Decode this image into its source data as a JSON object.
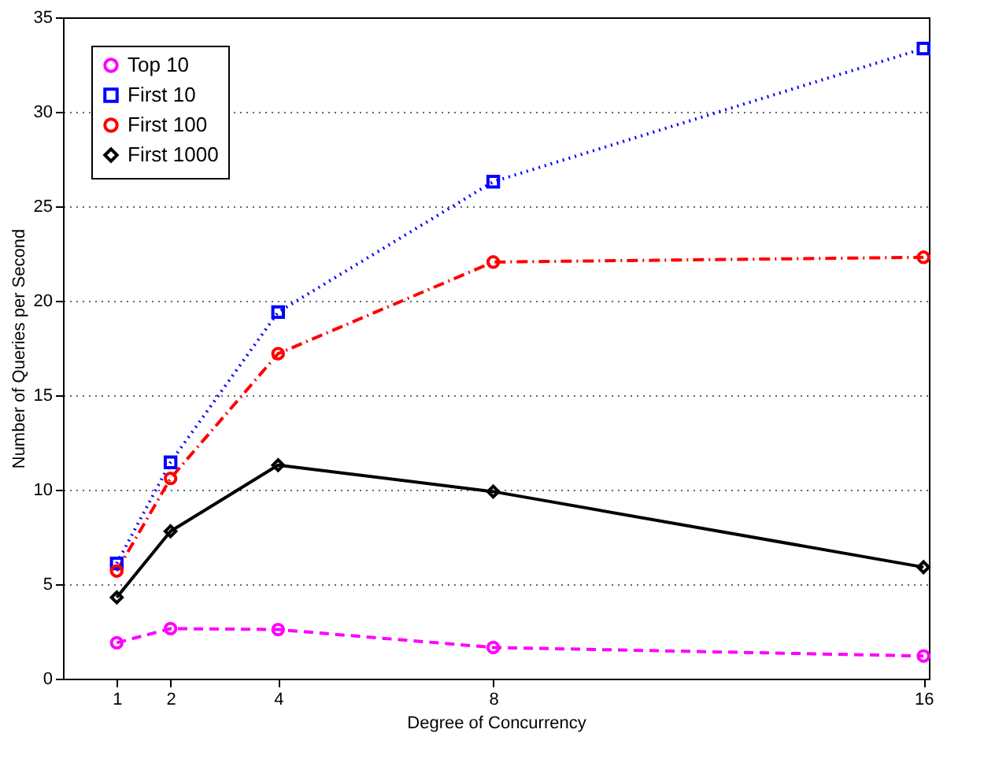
{
  "chart_data": {
    "type": "line",
    "xlabel": "Degree of Concurrency",
    "ylabel": "Number of Queries per Second",
    "x": [
      1,
      2,
      4,
      8,
      16
    ],
    "xlim": [
      0,
      16.1
    ],
    "xticks": [
      1,
      2,
      4,
      8,
      16
    ],
    "ylim": [
      0,
      35
    ],
    "yticks": [
      0,
      5,
      10,
      15,
      20,
      25,
      30,
      35
    ],
    "grid": "y",
    "legend": "top left",
    "series": [
      {
        "name": "Top 10",
        "color": "#ff00ff",
        "values": [
          1.9,
          2.65,
          2.6,
          1.65,
          1.2
        ],
        "marker": "circle",
        "line_style": "dashed"
      },
      {
        "name": "First 10",
        "color": "#0000ff",
        "values": [
          6.1,
          11.45,
          19.4,
          26.3,
          33.35
        ],
        "marker": "square",
        "line_style": "dotted"
      },
      {
        "name": "First 100",
        "color": "#ff0000",
        "values": [
          5.7,
          10.6,
          17.2,
          22.05,
          22.3
        ],
        "marker": "circle",
        "line_style": "dashdot"
      },
      {
        "name": "First 1000",
        "color": "#000000",
        "values": [
          4.3,
          7.8,
          11.3,
          9.9,
          5.9
        ],
        "marker": "diamond",
        "line_style": "solid"
      }
    ]
  }
}
